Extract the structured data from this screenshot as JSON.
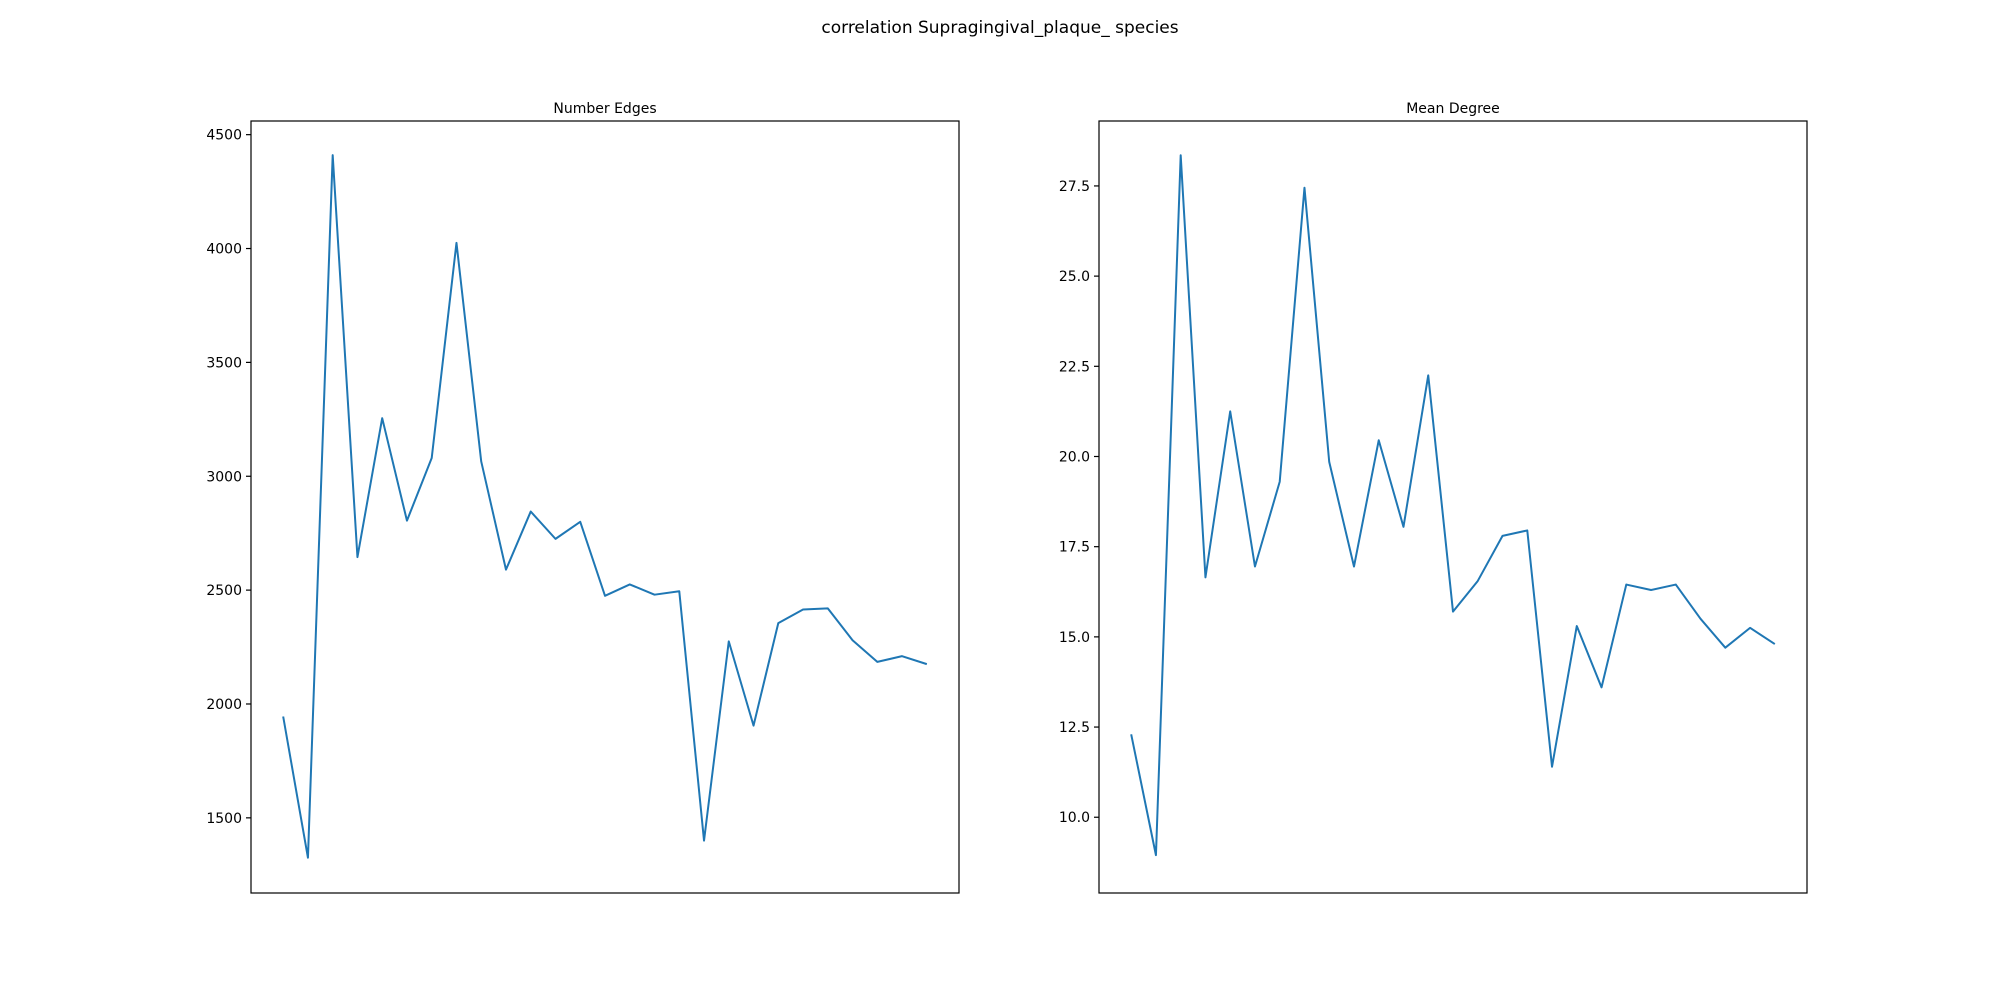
{
  "figure": {
    "suptitle": "correlation Supragingival_plaque_ species"
  },
  "chart_data": [
    {
      "type": "line",
      "title": "Number Edges",
      "xlabel": "",
      "ylabel": "",
      "x_ticks_visible": false,
      "grid": false,
      "color": "#1f77b4",
      "ylim": [
        1170,
        4560
      ],
      "yticks": [
        1500,
        2000,
        2500,
        3000,
        3500,
        4000,
        4500
      ],
      "ytick_labels": [
        "1500",
        "2000",
        "2500",
        "3000",
        "3500",
        "4000",
        "4500"
      ],
      "x": [
        0,
        1,
        2,
        3,
        4,
        5,
        6,
        7,
        8,
        9,
        10,
        11,
        12,
        13,
        14,
        15,
        16,
        17,
        18,
        19,
        20,
        21,
        22,
        23,
        24,
        25,
        26
      ],
      "values": [
        1945,
        1325,
        4410,
        2645,
        3255,
        2805,
        3080,
        4025,
        3065,
        2590,
        2845,
        2725,
        2800,
        2475,
        2525,
        2480,
        2495,
        1400,
        2275,
        1905,
        2355,
        2415,
        2420,
        2280,
        2185,
        2210,
        2175
      ]
    },
    {
      "type": "line",
      "title": "Mean Degree",
      "xlabel": "",
      "ylabel": "",
      "x_ticks_visible": false,
      "grid": false,
      "color": "#1f77b4",
      "ylim": [
        7.9,
        29.3
      ],
      "yticks": [
        10.0,
        12.5,
        15.0,
        17.5,
        20.0,
        22.5,
        25.0,
        27.5
      ],
      "ytick_labels": [
        "10.0",
        "12.5",
        "15.0",
        "17.5",
        "20.0",
        "22.5",
        "25.0",
        "27.5"
      ],
      "x": [
        0,
        1,
        2,
        3,
        4,
        5,
        6,
        7,
        8,
        9,
        10,
        11,
        12,
        13,
        14,
        15,
        16,
        17,
        18,
        19,
        20,
        21,
        22,
        23,
        24,
        25,
        26
      ],
      "values": [
        12.3,
        8.95,
        28.35,
        16.65,
        21.25,
        16.95,
        19.3,
        27.45,
        19.85,
        16.95,
        20.45,
        18.05,
        22.25,
        15.7,
        16.55,
        17.8,
        17.95,
        11.4,
        15.3,
        13.6,
        16.45,
        16.3,
        16.45,
        15.5,
        14.7,
        15.25,
        14.8
      ]
    }
  ]
}
